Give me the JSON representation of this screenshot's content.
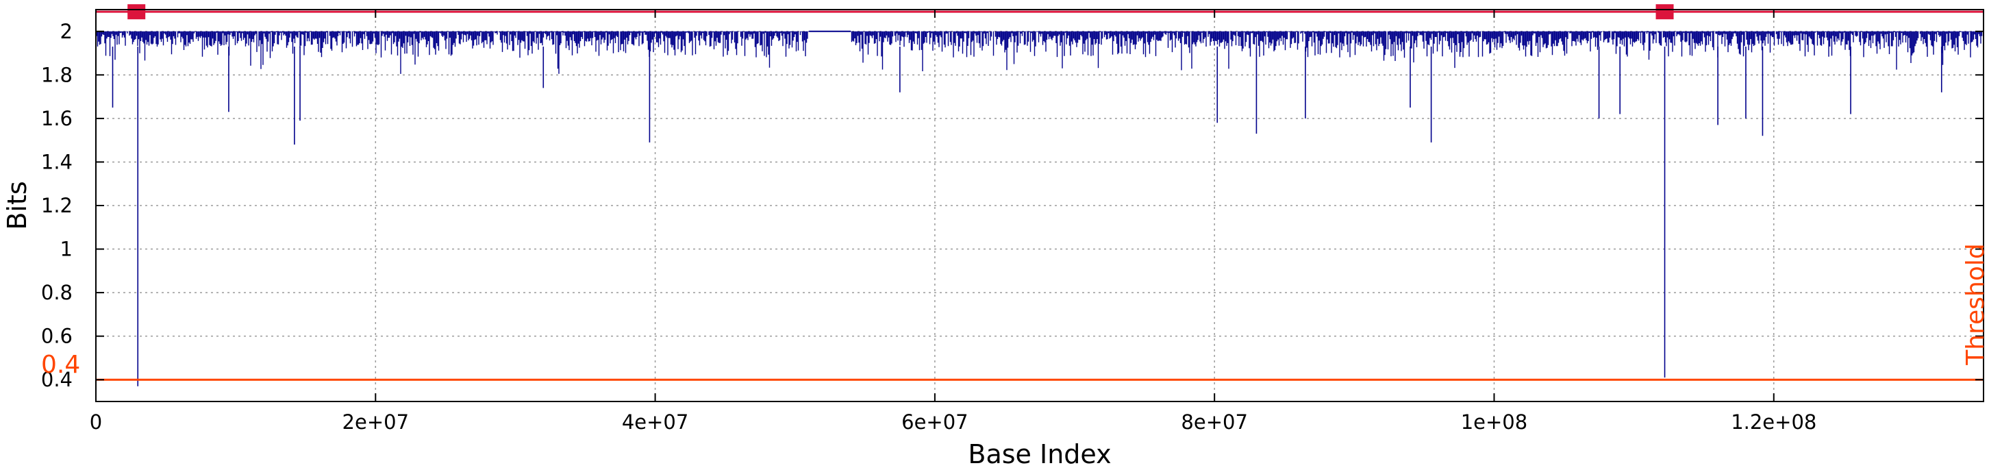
{
  "chart_data": {
    "type": "line",
    "title": "",
    "xlabel": "Base Index",
    "ylabel": "Bits",
    "xlim": [
      0,
      135000000
    ],
    "ylim": [
      0.3,
      2.1
    ],
    "x_ticks": [
      0,
      20000000,
      40000000,
      60000000,
      80000000,
      100000000,
      120000000
    ],
    "x_tick_labels": [
      "0",
      "2e+07",
      "4e+07",
      "6e+07",
      "8e+07",
      "1e+08",
      "1.2e+08"
    ],
    "y_ticks": [
      0.4,
      0.6,
      0.8,
      1,
      1.2,
      1.4,
      1.6,
      1.8,
      2
    ],
    "y_tick_labels": [
      "0.4",
      "0.6",
      "0.8",
      "1",
      "1.2",
      "1.4",
      "1.6",
      "1.8",
      "2"
    ],
    "grid": true,
    "series": [
      {
        "color": "#00008b",
        "baseline_band": [
          1.93,
          2.0
        ],
        "gap": [
          51000000,
          54000000
        ],
        "dips": [
          {
            "x": 1200000,
            "y": 1.65
          },
          {
            "x": 3000000,
            "y": 0.37
          },
          {
            "x": 9500000,
            "y": 1.63
          },
          {
            "x": 14200000,
            "y": 1.48
          },
          {
            "x": 14600000,
            "y": 1.59
          },
          {
            "x": 32000000,
            "y": 1.74
          },
          {
            "x": 39600000,
            "y": 1.49
          },
          {
            "x": 57500000,
            "y": 1.72
          },
          {
            "x": 80200000,
            "y": 1.58
          },
          {
            "x": 83000000,
            "y": 1.53
          },
          {
            "x": 86500000,
            "y": 1.6
          },
          {
            "x": 94000000,
            "y": 1.65
          },
          {
            "x": 95500000,
            "y": 1.49
          },
          {
            "x": 107500000,
            "y": 1.6
          },
          {
            "x": 109000000,
            "y": 1.62
          },
          {
            "x": 112200000,
            "y": 0.41
          },
          {
            "x": 116000000,
            "y": 1.57
          },
          {
            "x": 118000000,
            "y": 1.6
          },
          {
            "x": 119200000,
            "y": 1.52
          },
          {
            "x": 125500000,
            "y": 1.62
          },
          {
            "x": 132000000,
            "y": 1.72
          }
        ]
      }
    ],
    "reference_lines": [
      {
        "kind": "threshold",
        "y": 0.4,
        "color": "#ff4500",
        "value_label": "0.4",
        "label": "Threshold"
      },
      {
        "kind": "marker-line",
        "y": 2.09,
        "color": "#dc143c",
        "markers_x": [
          2900000,
          112200000
        ]
      }
    ]
  }
}
